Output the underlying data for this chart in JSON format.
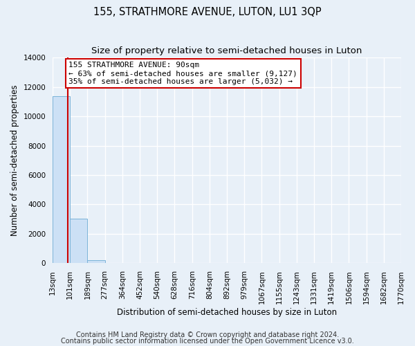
{
  "title": "155, STRATHMORE AVENUE, LUTON, LU1 3QP",
  "subtitle": "Size of property relative to semi-detached houses in Luton",
  "xlabel": "Distribution of semi-detached houses by size in Luton",
  "ylabel": "Number of semi-detached properties",
  "bin_labels": [
    "13sqm",
    "101sqm",
    "189sqm",
    "277sqm",
    "364sqm",
    "452sqm",
    "540sqm",
    "628sqm",
    "716sqm",
    "804sqm",
    "892sqm",
    "979sqm",
    "1067sqm",
    "1155sqm",
    "1243sqm",
    "1331sqm",
    "1419sqm",
    "1506sqm",
    "1594sqm",
    "1682sqm",
    "1770sqm"
  ],
  "bar_heights": [
    11350,
    3050,
    220,
    0,
    0,
    0,
    0,
    0,
    0,
    0,
    0,
    0,
    0,
    0,
    0,
    0,
    0,
    0,
    0,
    0
  ],
  "bar_color": "#cce0f5",
  "bar_edge_color": "#7ab3d8",
  "ylim": [
    0,
    14000
  ],
  "yticks": [
    0,
    2000,
    4000,
    6000,
    8000,
    10000,
    12000,
    14000
  ],
  "property_size_bin": 1,
  "property_label": "155 STRATHMORE AVENUE: 90sqm",
  "annotation_line1": "← 63% of semi-detached houses are smaller (9,127)",
  "annotation_line2": "35% of semi-detached houses are larger (5,032) →",
  "vline_color": "#cc0000",
  "annotation_border_color": "#cc0000",
  "footer_line1": "Contains HM Land Registry data © Crown copyright and database right 2024.",
  "footer_line2": "Contains public sector information licensed under the Open Government Licence v3.0.",
  "background_color": "#e8f0f8",
  "plot_bg_color": "#e8f0f8",
  "grid_color": "#ffffff",
  "title_fontsize": 10.5,
  "subtitle_fontsize": 9.5,
  "axis_label_fontsize": 8.5,
  "tick_fontsize": 7.5,
  "annotation_fontsize": 8,
  "footer_fontsize": 7
}
